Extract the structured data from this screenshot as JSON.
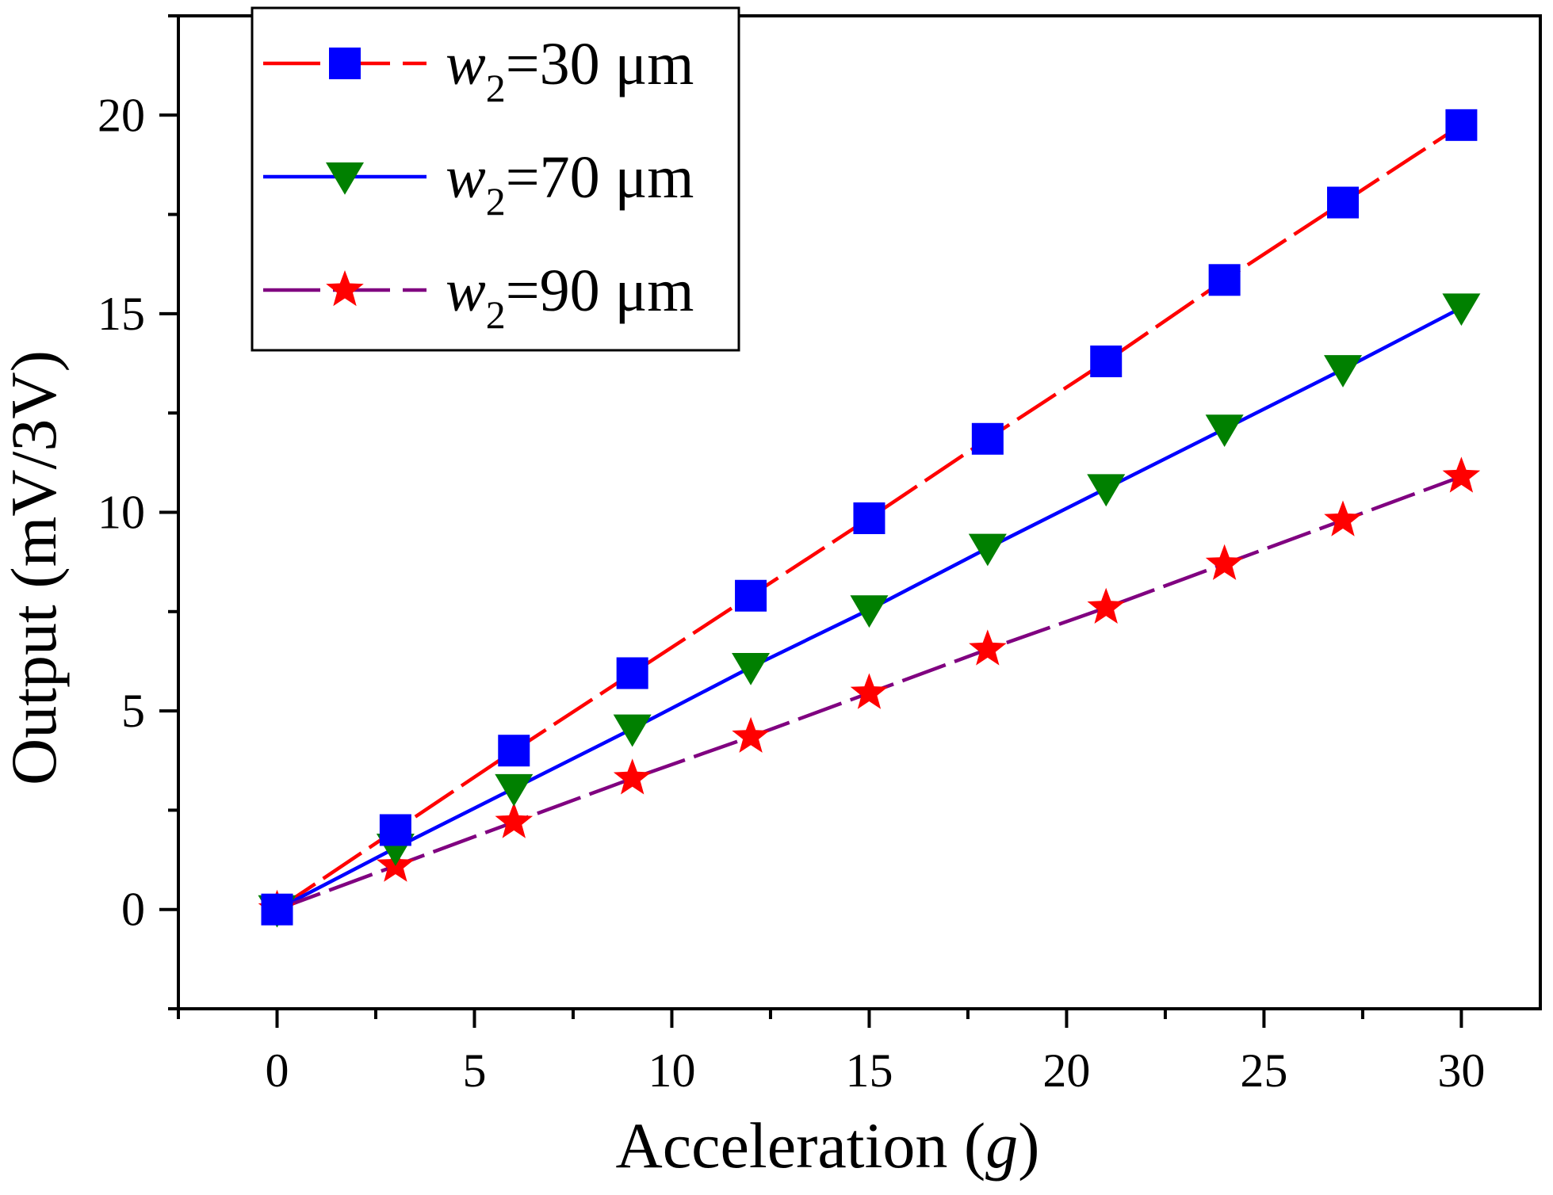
{
  "chart_data": {
    "type": "line",
    "title": "",
    "xlabel": "Acceleration (g)",
    "xlabel_prefix": "Acceleration (",
    "xlabel_italic": "g",
    "xlabel_suffix": ")",
    "ylabel": "Output (mV/3V)",
    "xlim": [
      -2.5,
      32
    ],
    "ylim": [
      -2.5,
      22.5
    ],
    "xticks": [
      0,
      5,
      10,
      15,
      20,
      25,
      30
    ],
    "yticks": [
      0,
      5,
      10,
      15,
      20
    ],
    "x": [
      0,
      3,
      6,
      9,
      12,
      15,
      18,
      21,
      24,
      27,
      30
    ],
    "legend_position": "top-left",
    "series": [
      {
        "name": "w2=30 μm",
        "legend_var": "w",
        "legend_sub": "2",
        "legend_rest": "=30 μm",
        "line_color": "#ff0000",
        "line_style": "dash",
        "marker": "square",
        "marker_color": "#0000ff",
        "values": [
          0,
          2.0,
          4.0,
          5.95,
          7.9,
          9.85,
          11.85,
          13.8,
          15.85,
          17.8,
          19.75
        ]
      },
      {
        "name": "w2=70 μm",
        "legend_var": "w",
        "legend_sub": "2",
        "legend_rest": "=70 μm",
        "line_color": "#0000ff",
        "line_style": "solid",
        "marker": "triangle-down",
        "marker_color": "#008000",
        "values": [
          0,
          1.55,
          3.05,
          4.55,
          6.1,
          7.55,
          9.1,
          10.6,
          12.1,
          13.6,
          15.15
        ]
      },
      {
        "name": "w2=90 μm",
        "legend_var": "w",
        "legend_sub": "2",
        "legend_rest": "=90 μm",
        "line_color": "#800080",
        "line_style": "dash",
        "marker": "star",
        "marker_color": "#ff0000",
        "values": [
          0,
          1.1,
          2.2,
          3.3,
          4.35,
          5.45,
          6.55,
          7.6,
          8.7,
          9.8,
          10.9
        ]
      }
    ]
  }
}
